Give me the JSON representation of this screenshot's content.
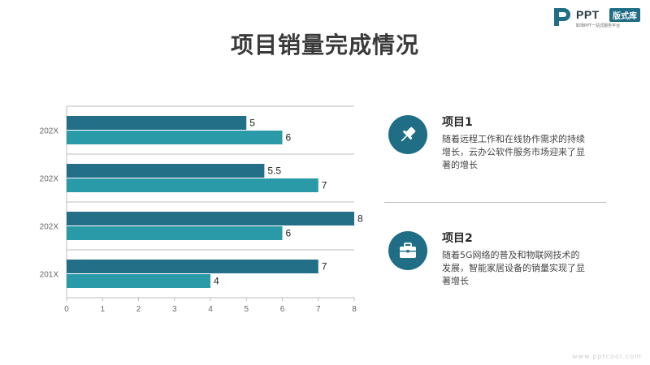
{
  "logo": {
    "text": "PPT",
    "badge": "版式库",
    "subtitle": "职场PPT一站式服务平台"
  },
  "title": "项目销量完成情况",
  "chart_data": {
    "type": "bar",
    "orientation": "horizontal",
    "categories": [
      "202X",
      "202X",
      "202X",
      "201X"
    ],
    "series": [
      {
        "values": [
          5,
          5.5,
          8,
          7
        ],
        "color": "#246f88"
      },
      {
        "values": [
          6,
          7,
          6,
          4
        ],
        "color": "#2b9aa8"
      }
    ],
    "data_labels": [
      [
        "5",
        "5.5",
        "8",
        "7"
      ],
      [
        "6",
        "7",
        "6",
        "4"
      ]
    ],
    "xlim": [
      0,
      8
    ],
    "xticks": [
      0,
      1,
      2,
      3,
      4,
      5,
      6,
      7,
      8
    ],
    "grid": "horizontal separators between categories",
    "legend": "none"
  },
  "items": [
    {
      "title": "项目1",
      "desc_lines": [
        "随着远程工作和在线协作需求的持续",
        "增长，云办公软件服务市场迎来了显",
        "著的增长"
      ],
      "icon": "pin-icon"
    },
    {
      "title": "项目2",
      "desc_lines": [
        "随着5G网络的普及和物联网技术的",
        "发展，智能家居设备的销量实现了显",
        "著增长"
      ],
      "icon": "briefcase-icon"
    }
  ],
  "footer": "www.pptcool.com",
  "colors": {
    "accent_dark": "#246f88",
    "accent_light": "#2b9aa8",
    "title": "#3a3a3a"
  }
}
